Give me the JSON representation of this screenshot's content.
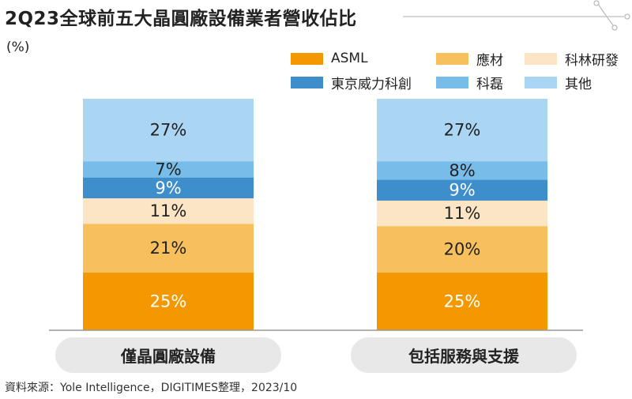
{
  "header": {
    "title": "2Q23全球前五大晶圓廠設備業者營收佔比",
    "unit": "(%)"
  },
  "footer": {
    "source": "資料來源：Yole Intelligence，DIGITIMES整理，2023/10"
  },
  "colors": {
    "background": "#ffffff",
    "axis": "#999999",
    "pill": "#e8e8e8",
    "decoration": "#bdbdbd"
  },
  "chart_data": {
    "type": "bar",
    "stacked": true,
    "categories": [
      "僅晶圓廠設備",
      "包括服務與支援"
    ],
    "ylim": [
      0,
      100
    ],
    "series": [
      {
        "name": "ASML",
        "color": "#f39800",
        "label_color": "#ffffff",
        "values": [
          25,
          25
        ]
      },
      {
        "name": "應材",
        "color": "#f7c05d",
        "label_color": "#222222",
        "values": [
          21,
          20
        ]
      },
      {
        "name": "科林研發",
        "color": "#fbe5c4",
        "label_color": "#222222",
        "values": [
          11,
          11
        ]
      },
      {
        "name": "東京威力科創",
        "color": "#3e8ecb",
        "label_color": "#ffffff",
        "values": [
          9,
          9
        ]
      },
      {
        "name": "科磊",
        "color": "#78bdea",
        "label_color": "#222222",
        "values": [
          7,
          8
        ]
      },
      {
        "name": "其他",
        "color": "#aad6f3",
        "label_color": "#222222",
        "values": [
          27,
          27
        ]
      }
    ],
    "data_labels": [
      [
        "25%",
        "25%"
      ],
      [
        "21%",
        "20%"
      ],
      [
        "11%",
        "11%"
      ],
      [
        "9%",
        "9%"
      ],
      [
        "7%",
        "8%"
      ],
      [
        "27%",
        "27%"
      ]
    ],
    "legend": {
      "position": "top-right",
      "columns": 3
    },
    "grid": false
  }
}
